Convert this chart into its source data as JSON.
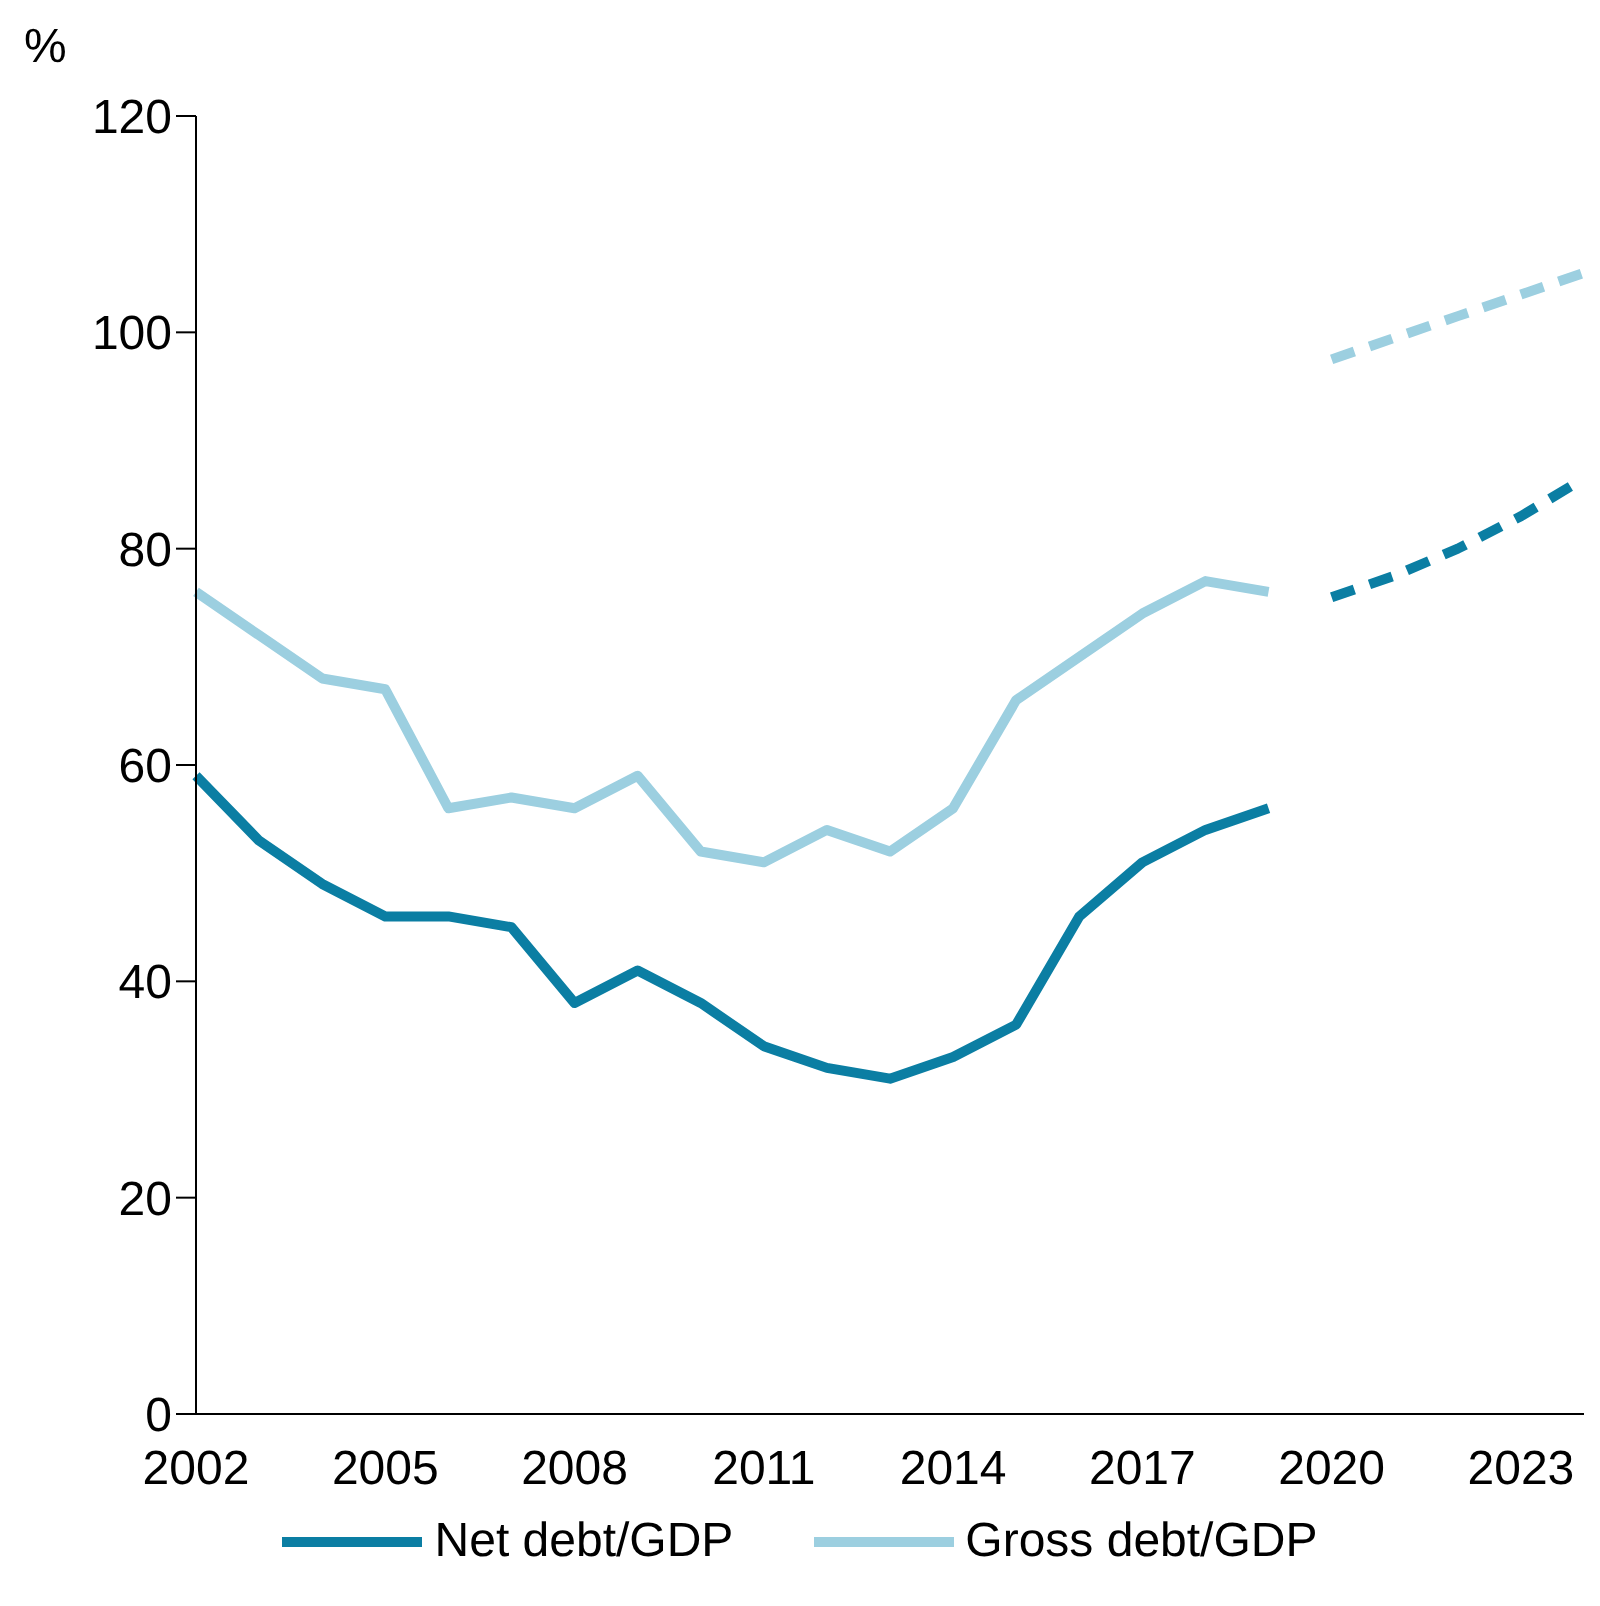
{
  "chart_data": {
    "type": "line",
    "ylabel": "%",
    "categories": [
      "2002",
      null,
      null,
      "2005",
      null,
      null,
      "2008",
      null,
      null,
      "2011",
      null,
      null,
      "2014",
      null,
      null,
      "2017",
      null,
      null,
      "2020",
      null,
      null,
      "2023",
      null
    ],
    "series": [
      {
        "name": "Net debt/GDP",
        "color": "#0b7ea3",
        "line_style": "solid",
        "values": [
          59,
          53,
          49,
          46,
          46,
          45,
          38,
          41,
          38,
          34,
          32,
          31,
          33,
          36,
          46,
          51,
          54,
          56,
          null,
          null,
          null,
          null,
          null
        ]
      },
      {
        "name": "Gross debt/GDP",
        "color": "#9ccfe0",
        "line_style": "solid",
        "values": [
          76,
          72,
          68,
          67,
          56,
          57,
          56,
          59,
          52,
          51,
          54,
          52,
          56,
          66,
          70,
          74,
          77,
          76,
          null,
          null,
          null,
          null,
          null
        ]
      },
      {
        "color": "#0b7ea3",
        "line_style": "dashed",
        "values": [
          null,
          null,
          null,
          null,
          null,
          null,
          null,
          null,
          null,
          null,
          null,
          null,
          null,
          null,
          null,
          null,
          null,
          null,
          75.5,
          77.5,
          80,
          83,
          86.5
        ]
      },
      {
        "color": "#9ccfe0",
        "line_style": "dashed",
        "values": [
          null,
          null,
          null,
          null,
          null,
          null,
          null,
          null,
          null,
          null,
          null,
          null,
          null,
          null,
          null,
          null,
          null,
          null,
          97.5,
          99.5,
          101.5,
          103.5,
          105.5
        ]
      }
    ],
    "ylim": [
      0,
      120
    ],
    "yticks": [
      0,
      20,
      40,
      60,
      80,
      100,
      120
    ],
    "grid": false,
    "legend": "bottom",
    "marker": "none"
  }
}
